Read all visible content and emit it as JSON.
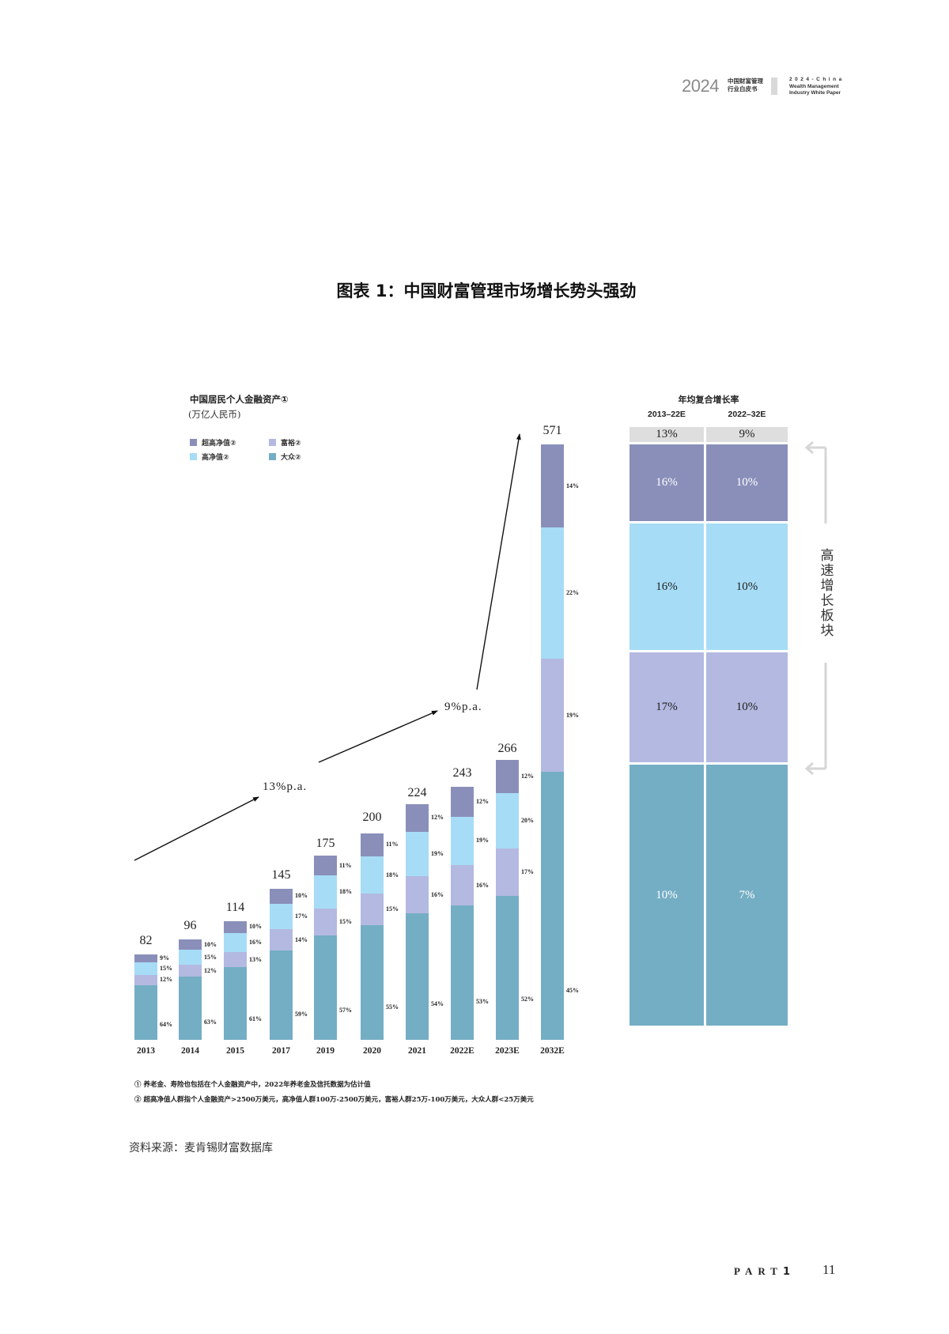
{
  "header": {
    "year": "2024",
    "cn_line1": "中国财富管理",
    "cn_line2": "行业白皮书",
    "en_line1": "2024-China",
    "en_line2": "Wealth Management",
    "en_line3": "Industry White Paper"
  },
  "figure_title": "图表 1：中国财富管理市场增长势头强劲",
  "chart": {
    "title": "中国居民个人金融资产①",
    "unit": "(万亿人民币)",
    "legend": [
      {
        "label": "超高净值②",
        "color": "#8a8fba"
      },
      {
        "label": "富裕②",
        "color": "#b3b9e0"
      },
      {
        "label": "高净值②",
        "color": "#a7dcf6"
      },
      {
        "label": "大众②",
        "color": "#74aec4"
      }
    ],
    "growth_labels": [
      "13%p.a.",
      "9%p.a."
    ]
  },
  "chart_data": {
    "type": "bar",
    "stacked": true,
    "title": "中国居民个人金融资产①",
    "ylabel": "万亿人民币",
    "categories": [
      "2013",
      "2014",
      "2015",
      "2017",
      "2019",
      "2020",
      "2021",
      "2022E",
      "2023E",
      "2032E"
    ],
    "totals": [
      82,
      96,
      114,
      145,
      175,
      200,
      224,
      243,
      266,
      571
    ],
    "series": [
      {
        "name": "大众②",
        "color": "#74aec4",
        "values": [
          "64%",
          "63%",
          "61%",
          "59%",
          "57%",
          "55%",
          "54%",
          "53%",
          "52%",
          "45%"
        ]
      },
      {
        "name": "富裕②",
        "color": "#b3b9e0",
        "values": [
          "12%",
          "12%",
          "13%",
          "14%",
          "15%",
          "15%",
          "16%",
          "16%",
          "17%",
          "19%"
        ]
      },
      {
        "name": "高净值②",
        "color": "#a7dcf6",
        "values": [
          "15%",
          "15%",
          "16%",
          "17%",
          "18%",
          "18%",
          "19%",
          "19%",
          "20%",
          "22%"
        ]
      },
      {
        "name": "超高净值②",
        "color": "#8a8fba",
        "values": [
          "9%",
          "10%",
          "10%",
          "10%",
          "11%",
          "11%",
          "12%",
          "12%",
          "12%",
          "14%"
        ]
      }
    ],
    "annotations": [
      "13%p.a.",
      "9%p.a."
    ],
    "grid": false
  },
  "cagr_panel": {
    "title": "年均复合增长率",
    "periods": [
      "2013–22E",
      "2022–32E"
    ],
    "total": [
      "13%",
      "9%"
    ],
    "rows": [
      {
        "segment": "超高净值",
        "color": "#8a8fba",
        "values": [
          "16%",
          "10%"
        ],
        "text_color": "#ffffff"
      },
      {
        "segment": "高净值",
        "color": "#a7dcf6",
        "values": [
          "16%",
          "10%"
        ],
        "text_color": "#222222"
      },
      {
        "segment": "富裕",
        "color": "#b3b9e0",
        "values": [
          "17%",
          "10%"
        ],
        "text_color": "#222222"
      },
      {
        "segment": "大众",
        "color": "#74aec4",
        "values": [
          "10%",
          "7%"
        ],
        "text_color": "#ffffff"
      }
    ],
    "bracket_label": "高速增长板块"
  },
  "footnotes": [
    "① 养老金、寿险也包括在个人金融资产中，2022年养老金及信托数据为估计值",
    "② 超高净值人群指个人金融资产>2500万美元，高净值人群100万-2500万美元，富裕人群25万-100万美元，大众人群<25万美元"
  ],
  "source": "资料来源：麦肯锡财富数据库",
  "footer": {
    "part": "PART",
    "part_num": "1",
    "page": "11"
  }
}
